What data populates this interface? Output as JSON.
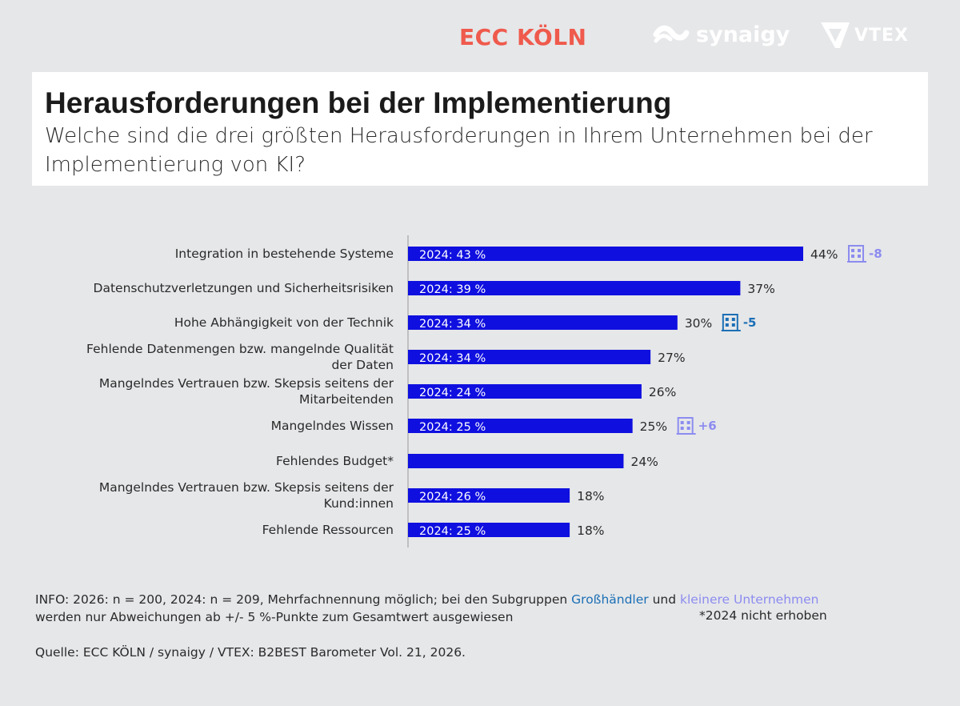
{
  "logos": {
    "ecc": "ECC KÖLN",
    "synaigy": "synaigy",
    "vtex": "VTEX"
  },
  "header": {
    "title": "Herausforderungen bei der Implementierung",
    "subtitle": "Welche sind die drei größten Herausforderungen in Ihrem Unternehmen bei der Implementierung von KI?"
  },
  "colors": {
    "bar": "#0f0fe0",
    "grosshaendler": "#1b6fb5",
    "kleinere_unternehmen": "#8c8cf0",
    "background": "#e6e7e9"
  },
  "chart_data": {
    "type": "bar",
    "orientation": "horizontal",
    "unit": "%",
    "categories": [
      [
        "Integration in bestehende Systeme"
      ],
      [
        "Datenschutzverletzungen und Sicherheitsrisiken"
      ],
      [
        "Hohe Abhängigkeit von der Technik"
      ],
      [
        "Fehlende Datenmengen bzw. mangelnde Qualität",
        "der Daten"
      ],
      [
        "Mangelndes Vertrauen bzw. Skepsis seitens der",
        "Mitarbeitenden"
      ],
      [
        "Mangelndes Wissen"
      ],
      [
        "Fehlendes Budget*"
      ],
      [
        "Mangelndes Vertrauen bzw. Skepsis seitens der",
        "Kund:innen"
      ],
      [
        "Fehlende Ressourcen"
      ]
    ],
    "values": [
      44,
      37,
      30,
      27,
      26,
      25,
      24,
      18,
      18
    ],
    "value_labels": [
      "44%",
      "37%",
      "30%",
      "27%",
      "26%",
      "25%",
      "24%",
      "18%",
      "18%"
    ],
    "bar_labels": [
      "2024: 43 %",
      "2024: 39 %",
      "2024: 34 %",
      "2024: 34 %",
      "2024: 24 %",
      "2024: 25 %",
      "",
      "2024: 26 %",
      "2024: 25 %"
    ],
    "subgroup_deviations": [
      {
        "index": 0,
        "group": "kleinere_unternehmen",
        "label": "-8"
      },
      {
        "index": 2,
        "group": "grosshaendler",
        "label": "-5"
      },
      {
        "index": 5,
        "group": "kleinere_unternehmen",
        "label": "+6"
      }
    ],
    "xlim": [
      0,
      44
    ]
  },
  "footer": {
    "info_prefix": "INFO: 2026: n = 200, 2024: n = 209, Mehrfachnennung möglich; bei den Subgruppen ",
    "grosshaendler": "Großhändler",
    "und": " und ",
    "kleinere_unternehmen": "kleinere Unternehmen",
    "info_line2": "werden nur Abweichungen ab +/- 5 %-Punkte zum Gesamtwert ausgewiesen",
    "note": "*2024 nicht erhoben",
    "source": "Quelle: ECC KÖLN / synaigy / VTEX: B2BEST Barometer Vol. 21, 2026."
  }
}
